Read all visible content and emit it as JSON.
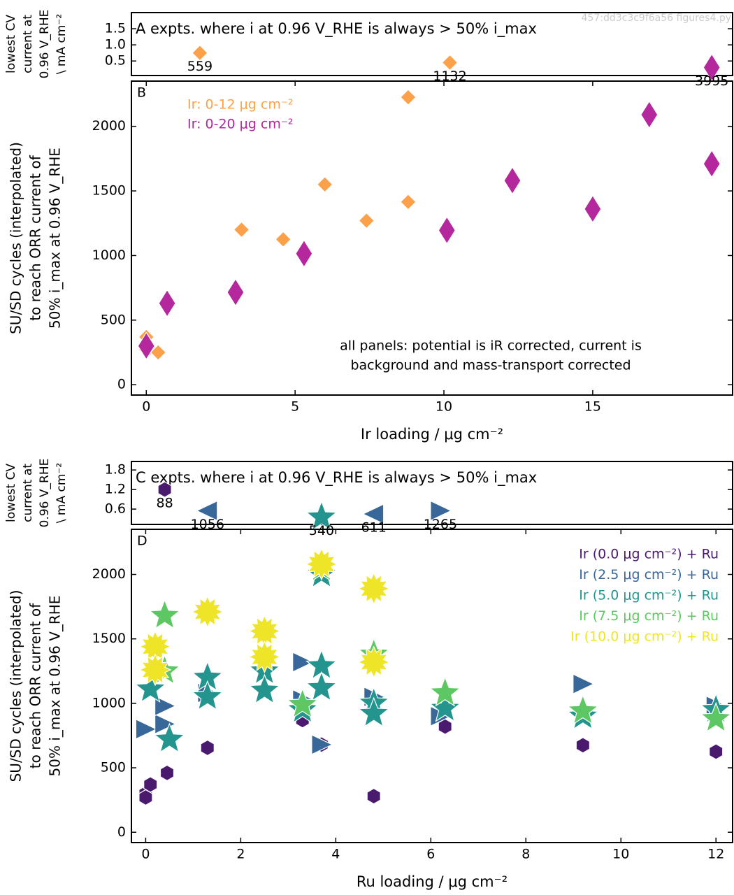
{
  "watermark": "457:dd3c3c9f6a56 figures4.py",
  "chart_data": [
    {
      "type": "scatter",
      "annotation": [
        "A expts. where i at 0.96 V_RHE is always > 50% i_max"
      ],
      "ylabel": [
        "lowest CV",
        "current at",
        "0.96 V_RHE",
        "\\ mA cm⁻²"
      ],
      "xlim": [
        -0.5,
        19.7
      ],
      "ylim": [
        0.05,
        2.0
      ],
      "yticks": [
        0.5,
        {
          "value": 1,
          "label": "1.0"
        },
        1.5
      ],
      "series": [
        {
          "color": "#fca14a",
          "marker": "diamond",
          "x": [
            1.8
          ],
          "values": [
            0.75
          ],
          "point_labels": [
            "559"
          ]
        },
        {
          "color": "#fca14a",
          "marker": "diamond",
          "x": [
            10.2
          ],
          "values": [
            0.45
          ],
          "point_labels": [
            "1132"
          ]
        },
        {
          "color": "#b5279d",
          "marker": "thin_diamond",
          "x": [
            19
          ],
          "values": [
            0.3
          ],
          "point_labels": [
            "3995"
          ]
        }
      ]
    },
    {
      "type": "scatter",
      "panel_label": "B",
      "annotation": [
        "all panels: potential is iR corrected, current is",
        "background and mass-transport corrected"
      ],
      "ylabel": [
        "SU/SD cycles (interpolated)",
        "to reach  ORR current of",
        "50% i_max at 0.96 V_RHE"
      ],
      "xlabel": "Ir loading / μg cm⁻²",
      "xlim": [
        -0.5,
        19.7
      ],
      "ylim": [
        -80,
        2350
      ],
      "xticks": [
        0,
        5,
        10,
        15
      ],
      "yticks": [
        0,
        500,
        1000,
        1500,
        2000
      ],
      "legend": "upper left",
      "series": [
        {
          "name": "Ir: 0-12 μg cm⁻²",
          "color": "#fca14a",
          "marker": "diamond",
          "x": [
            0,
            0,
            0.1,
            0.4,
            3.2,
            4.6,
            6.0,
            7.4,
            8.8,
            8.8
          ],
          "values": [
            370,
            270,
            280,
            250,
            1200,
            1125,
            1550,
            1270,
            1415,
            2225
          ]
        },
        {
          "name": "Ir: 0-20 μg cm⁻²",
          "color": "#b5279d",
          "marker": "thin_diamond",
          "x": [
            0,
            0.7,
            3.0,
            5.3,
            10.1,
            12.3,
            15.0,
            16.9,
            19.0
          ],
          "values": [
            300,
            630,
            715,
            1015,
            1195,
            1580,
            1360,
            2090,
            1710
          ]
        }
      ]
    },
    {
      "type": "scatter",
      "annotation": [
        "C expts. where i at 0.96 V_RHE is always > 50% i_max"
      ],
      "ylabel": [
        "lowest CV",
        "current at",
        "0.96 V_RHE",
        "\\ mA cm⁻²"
      ],
      "xlim": [
        -0.3,
        12.35
      ],
      "ylim": [
        0.13,
        2.06
      ],
      "yticks": [
        0.6,
        1.2,
        1.8
      ],
      "series": [
        {
          "color": "#4a1a6e",
          "marker": "hexagon",
          "x": [
            0.4
          ],
          "values": [
            1.2
          ],
          "point_labels": [
            "88"
          ]
        },
        {
          "color": "#386899",
          "marker": "triangle_left",
          "x": [
            1.3,
            4.8
          ],
          "values": [
            0.55,
            0.45
          ],
          "point_labels": [
            "1056",
            "611"
          ]
        },
        {
          "color": "#386899",
          "marker": "triangle_right",
          "x": [
            6.2
          ],
          "values": [
            0.55
          ],
          "point_labels": [
            "1265"
          ]
        },
        {
          "color": "#23958e",
          "marker": "star",
          "x": [
            3.7
          ],
          "values": [
            0.35
          ],
          "point_labels": [
            "540"
          ]
        }
      ]
    },
    {
      "type": "scatter",
      "panel_label": "D",
      "ylabel": [
        "SU/SD cycles (interpolated)",
        "to reach  ORR current of",
        "50% i_max at 0.96 V_RHE"
      ],
      "xlabel": "Ru loading / μg cm⁻²",
      "xlim": [
        -0.3,
        12.35
      ],
      "ylim": [
        -80,
        2350
      ],
      "xticks": [
        0,
        2,
        4,
        6,
        8,
        10,
        12
      ],
      "yticks": [
        0,
        500,
        1000,
        1500,
        2000
      ],
      "legend": "upper right",
      "series": [
        {
          "name": "Ir (0.0 μg cm⁻²) + Ru",
          "color": "#4a1a6e",
          "marker": "hexagon",
          "x": [
            0,
            0,
            0.1,
            0.45,
            1.3,
            3.3,
            3.7,
            4.8,
            6.3,
            9.2,
            12
          ],
          "values": [
            300,
            270,
            370,
            460,
            655,
            870,
            680,
            280,
            820,
            675,
            625
          ]
        },
        {
          "name": "Ir (2.5 μg cm⁻²) + Ru",
          "color": "#386899",
          "marker": "triangle_right",
          "x": [
            0,
            0.4,
            0.4,
            1.3,
            3.3,
            3.7,
            3.3,
            4.8,
            6.2,
            9.2,
            12
          ],
          "values": [
            800,
            840,
            980,
            1080,
            1320,
            680,
            1030,
            1050,
            900,
            1150,
            980
          ]
        },
        {
          "name": "Ir (5.0 μg cm⁻²) + Ru",
          "color": "#23958e",
          "marker": "star",
          "x": [
            0.1,
            0.5,
            1.3,
            1.3,
            2.5,
            2.5,
            3.3,
            3.7,
            3.7,
            3.7,
            4.8,
            4.8,
            6.3,
            9.2,
            12
          ],
          "values": [
            1110,
            720,
            1200,
            1050,
            1250,
            1100,
            950,
            1290,
            1120,
            2000,
            1000,
            920,
            960,
            900,
            950
          ]
        },
        {
          "name": "Ir (7.5 μg cm⁻²) + Ru",
          "color": "#5dc863",
          "marker": "star",
          "x": [
            0.4,
            0.4,
            3.3,
            3.7,
            4.8,
            6.3,
            9.2,
            12
          ],
          "values": [
            1680,
            1250,
            990,
            2050,
            1380,
            1080,
            940,
            880
          ]
        },
        {
          "name": "Ir (10.0 μg cm⁻²) + Ru",
          "color": "#eee528",
          "marker": "sun",
          "x": [
            0.2,
            0.2,
            1.3,
            2.5,
            2.5,
            3.7,
            4.8,
            4.8
          ],
          "values": [
            1440,
            1260,
            1710,
            1560,
            1360,
            2080,
            1890,
            1320
          ]
        }
      ]
    }
  ]
}
